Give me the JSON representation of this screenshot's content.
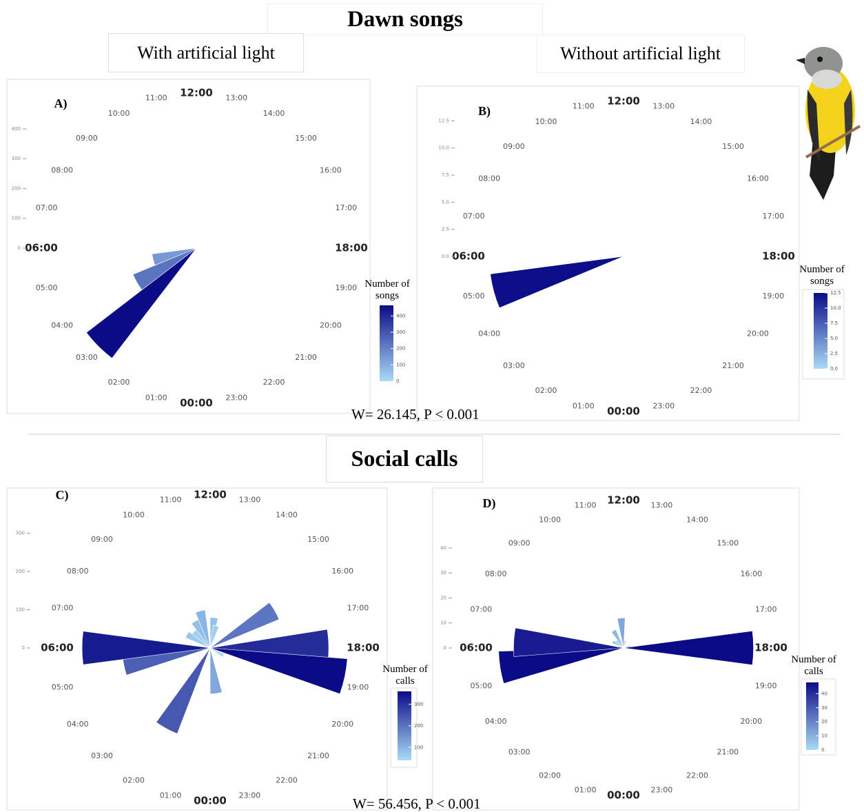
{
  "header": {
    "title": "Dawn songs",
    "left_label": "With artificial light",
    "right_label": "Without artificial light"
  },
  "songs_stat": "W= 26.145, P < 0.001",
  "calls_title": "Social calls",
  "calls_stat": "W= 56.456, P < 0.001",
  "chart_data": [
    {
      "type": "rose",
      "panel": "A)",
      "x": [
        3,
        4,
        5
      ],
      "values": [
        465,
        230,
        150
      ],
      "ylim": [
        0,
        520
      ],
      "yticks": [
        0,
        100,
        200,
        300,
        400
      ],
      "xticks": [
        {
          "value": 0,
          "label": "00:00"
        },
        {
          "value": 1,
          "label": "01:00"
        },
        {
          "value": 2,
          "label": "02:00"
        },
        {
          "value": 3,
          "label": "03:00"
        },
        {
          "value": 4,
          "label": "04:00"
        },
        {
          "value": 5,
          "label": "05:00"
        },
        {
          "value": 6,
          "label": "06:00"
        },
        {
          "value": 7,
          "label": "07:00"
        },
        {
          "value": 8,
          "label": "08:00"
        },
        {
          "value": 9,
          "label": "09:00"
        },
        {
          "value": 10,
          "label": "10:00"
        },
        {
          "value": 11,
          "label": "11:00"
        },
        {
          "value": 12,
          "label": "12:00"
        },
        {
          "value": 13,
          "label": "13:00"
        },
        {
          "value": 14,
          "label": "14:00"
        },
        {
          "value": 15,
          "label": "15:00"
        },
        {
          "value": 16,
          "label": "16:00"
        },
        {
          "value": 17,
          "label": "17:00"
        },
        {
          "value": 18,
          "label": "18:00"
        },
        {
          "value": 19,
          "label": "19:00"
        },
        {
          "value": 20,
          "label": "20:00"
        },
        {
          "value": 21,
          "label": "21:00"
        },
        {
          "value": 22,
          "label": "22:00"
        },
        {
          "value": 23,
          "label": "23:00"
        }
      ],
      "colormap": [
        "#a9dbf7",
        "#0b0b87"
      ],
      "colorbar": {
        "title": "Number of songs",
        "lim": [
          0,
          465
        ],
        "ticks": [
          0,
          100,
          200,
          300,
          400
        ]
      }
    },
    {
      "type": "rose",
      "panel": "B)",
      "x": [
        5
      ],
      "values": [
        12.4
      ],
      "ylim": [
        0,
        14.3
      ],
      "yticks": [
        {
          "value": 0,
          "label": "0.0"
        },
        {
          "value": 2.5,
          "label": "2.5"
        },
        {
          "value": 5,
          "label": "5.0"
        },
        {
          "value": 7.5,
          "label": "7.5"
        },
        {
          "value": 10,
          "label": "10.0"
        },
        {
          "value": 12.5,
          "label": "12.5"
        }
      ],
      "xticks": [
        {
          "value": 0,
          "label": "00:00"
        },
        {
          "value": 1,
          "label": "01:00"
        },
        {
          "value": 2,
          "label": "02:00"
        },
        {
          "value": 3,
          "label": "03:00"
        },
        {
          "value": 4,
          "label": "04:00"
        },
        {
          "value": 5,
          "label": "05:00"
        },
        {
          "value": 6,
          "label": "06:00"
        },
        {
          "value": 7,
          "label": "07:00"
        },
        {
          "value": 8,
          "label": "08:00"
        },
        {
          "value": 9,
          "label": "09:00"
        },
        {
          "value": 10,
          "label": "10:00"
        },
        {
          "value": 11,
          "label": "11:00"
        },
        {
          "value": 12,
          "label": "12:00"
        },
        {
          "value": 13,
          "label": "13:00"
        },
        {
          "value": 14,
          "label": "14:00"
        },
        {
          "value": 15,
          "label": "15:00"
        },
        {
          "value": 16,
          "label": "16:00"
        },
        {
          "value": 17,
          "label": "17:00"
        },
        {
          "value": 18,
          "label": "18:00"
        },
        {
          "value": 19,
          "label": "19:00"
        },
        {
          "value": 20,
          "label": "20:00"
        },
        {
          "value": 21,
          "label": "21:00"
        },
        {
          "value": 22,
          "label": "22:00"
        },
        {
          "value": 23,
          "label": "23:00"
        }
      ],
      "colormap": [
        "#a9dbf7",
        "#0b0b87"
      ],
      "colorbar": {
        "title": "Number of songs",
        "lim": [
          0,
          12.5
        ],
        "ticks": [
          {
            "value": 0,
            "label": "0.0"
          },
          {
            "value": 2.5,
            "label": "2.5"
          },
          {
            "value": 5,
            "label": "5.0"
          },
          {
            "value": 7.5,
            "label": "7.5"
          },
          {
            "value": 10,
            "label": "10.0"
          },
          {
            "value": 12.5,
            "label": "12.5"
          }
        ]
      }
    },
    {
      "type": "rose",
      "panel": "C)",
      "x": [
        1.9,
        5.3,
        6,
        8,
        9,
        10,
        11,
        12.5,
        13,
        16,
        17.9,
        18.8,
        20,
        23.5
      ],
      "values": [
        240,
        230,
        335,
        70,
        60,
        80,
        100,
        80,
        60,
        195,
        310,
        360,
        40,
        120
      ],
      "ylim": [
        0,
        400
      ],
      "yticks": [
        0,
        100,
        200,
        300
      ],
      "xticks": [
        {
          "value": 0,
          "label": "00:00"
        },
        {
          "value": 1,
          "label": "01:00"
        },
        {
          "value": 2,
          "label": "02:00"
        },
        {
          "value": 3,
          "label": "03:00"
        },
        {
          "value": 4,
          "label": "04:00"
        },
        {
          "value": 5,
          "label": "05:00"
        },
        {
          "value": 6,
          "label": "06:00"
        },
        {
          "value": 7,
          "label": "07:00"
        },
        {
          "value": 8,
          "label": "08:00"
        },
        {
          "value": 9,
          "label": "09:00"
        },
        {
          "value": 10,
          "label": "10:00"
        },
        {
          "value": 11,
          "label": "11:00"
        },
        {
          "value": 12,
          "label": "12:00"
        },
        {
          "value": 13,
          "label": "13:00"
        },
        {
          "value": 14,
          "label": "14:00"
        },
        {
          "value": 15,
          "label": "15:00"
        },
        {
          "value": 16,
          "label": "16:00"
        },
        {
          "value": 17,
          "label": "17:00"
        },
        {
          "value": 18,
          "label": "18:00"
        },
        {
          "value": 19,
          "label": "19:00"
        },
        {
          "value": 20,
          "label": "20:00"
        },
        {
          "value": 21,
          "label": "21:00"
        },
        {
          "value": 22,
          "label": "22:00"
        },
        {
          "value": 23,
          "label": "23:00"
        }
      ],
      "colormap": [
        "#a9dbf7",
        "#0b0b87"
      ],
      "colorbar": {
        "title": "Number of calls",
        "lim": [
          40,
          360
        ],
        "ticks": [
          100,
          200,
          300
        ]
      }
    },
    {
      "type": "rose",
      "panel": "D)",
      "x": [
        5.4,
        6.2,
        8,
        9,
        10,
        11.7,
        13,
        17,
        18
      ],
      "values": [
        50,
        44,
        5,
        4,
        8,
        12,
        3,
        3,
        52
      ],
      "ylim": [
        0,
        59
      ],
      "yticks": [
        0,
        10,
        20,
        30,
        40
      ],
      "xticks": [
        {
          "value": 0,
          "label": "00:00"
        },
        {
          "value": 1,
          "label": "01:00"
        },
        {
          "value": 2,
          "label": "02:00"
        },
        {
          "value": 3,
          "label": "03:00"
        },
        {
          "value": 4,
          "label": "04:00"
        },
        {
          "value": 5,
          "label": "05:00"
        },
        {
          "value": 6,
          "label": "06:00"
        },
        {
          "value": 7,
          "label": "07:00"
        },
        {
          "value": 8,
          "label": "08:00"
        },
        {
          "value": 9,
          "label": "09:00"
        },
        {
          "value": 10,
          "label": "10:00"
        },
        {
          "value": 11,
          "label": "11:00"
        },
        {
          "value": 12,
          "label": "12:00"
        },
        {
          "value": 13,
          "label": "13:00"
        },
        {
          "value": 14,
          "label": "14:00"
        },
        {
          "value": 15,
          "label": "15:00"
        },
        {
          "value": 16,
          "label": "16:00"
        },
        {
          "value": 17,
          "label": "17:00"
        },
        {
          "value": 18,
          "label": "18:00"
        },
        {
          "value": 19,
          "label": "19:00"
        },
        {
          "value": 20,
          "label": "20:00"
        },
        {
          "value": 21,
          "label": "21:00"
        },
        {
          "value": 22,
          "label": "22:00"
        },
        {
          "value": 23,
          "label": "23:00"
        }
      ],
      "colormap": [
        "#a9dbf7",
        "#0b0b87"
      ],
      "colorbar": {
        "title": "Number of calls",
        "lim": [
          0,
          48
        ],
        "ticks": [
          0,
          10,
          20,
          30,
          40
        ]
      }
    }
  ]
}
